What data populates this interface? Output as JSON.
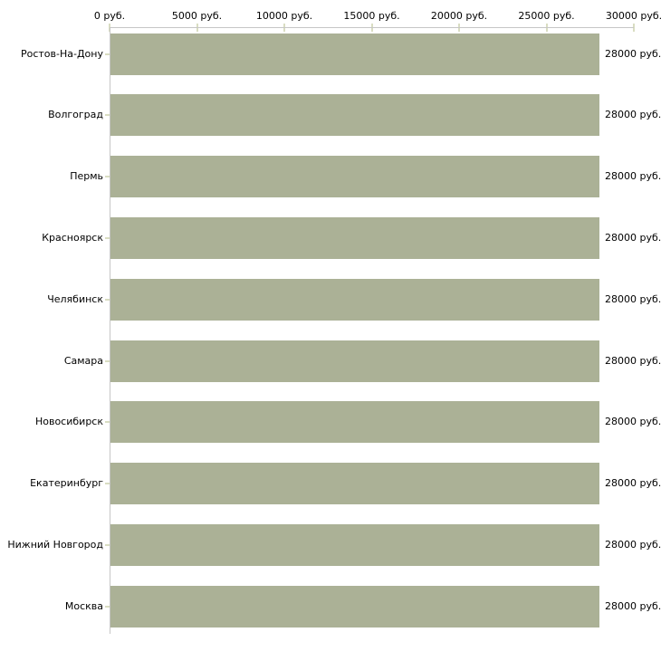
{
  "chart_data": {
    "type": "bar",
    "orientation": "horizontal",
    "title": "",
    "categories": [
      "Ростов-На-Дону",
      "Волгоград",
      "Пермь",
      "Красноярск",
      "Челябинск",
      "Самара",
      "Новосибирск",
      "Екатеринбург",
      "Нижний Новгород",
      "Москва"
    ],
    "values": [
      28000,
      28000,
      28000,
      28000,
      28000,
      28000,
      28000,
      28000,
      28000,
      28000
    ],
    "value_labels": [
      "28000 руб.",
      "28000 руб.",
      "28000 руб.",
      "28000 руб.",
      "28000 руб.",
      "28000 руб.",
      "28000 руб.",
      "28000 руб.",
      "28000 руб.",
      "28000 руб."
    ],
    "x_axis": {
      "position": "top",
      "min": 0,
      "max": 30000,
      "tick_values": [
        0,
        5000,
        10000,
        15000,
        20000,
        25000,
        30000
      ],
      "tick_labels": [
        "0 руб.",
        "5000 руб.",
        "10000 руб.",
        "15000 руб.",
        "20000 руб.",
        "25000 руб.",
        "30000 руб."
      ]
    },
    "grid": false,
    "legend": false,
    "colors": {
      "bar": "#abb196",
      "axis_line": "#c6c6c6",
      "tick": "#d9ddc2",
      "text": "#000000",
      "background": "#ffffff"
    }
  }
}
